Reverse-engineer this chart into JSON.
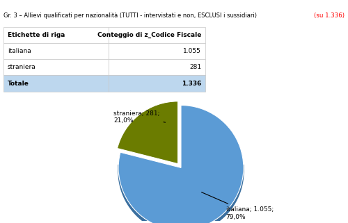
{
  "title_line1": "Gr. 3 – Allievi qualificati per nazionalità (TUTTI - intervistati e non, ESCLUSI i sussidiari)",
  "title_line2": "(su 1.336)",
  "table_headers": [
    "Etichette di riga",
    "Conteggio di z_Codice Fiscale"
  ],
  "table_rows": [
    [
      "italiana",
      "1.055"
    ],
    [
      "straniera",
      "281"
    ],
    [
      "Totale",
      "1.336"
    ]
  ],
  "pie_values": [
    1055,
    281
  ],
  "pie_colors": [
    "#5B9BD5",
    "#6B7C00"
  ],
  "pie_shadow_colors": [
    "#3A6F9F",
    "#4A5500"
  ],
  "bg_color": "#FFFFFF",
  "grid_color": "#C8C8C8",
  "title2_color": "#FF0000",
  "explode": [
    0.0,
    0.08
  ]
}
